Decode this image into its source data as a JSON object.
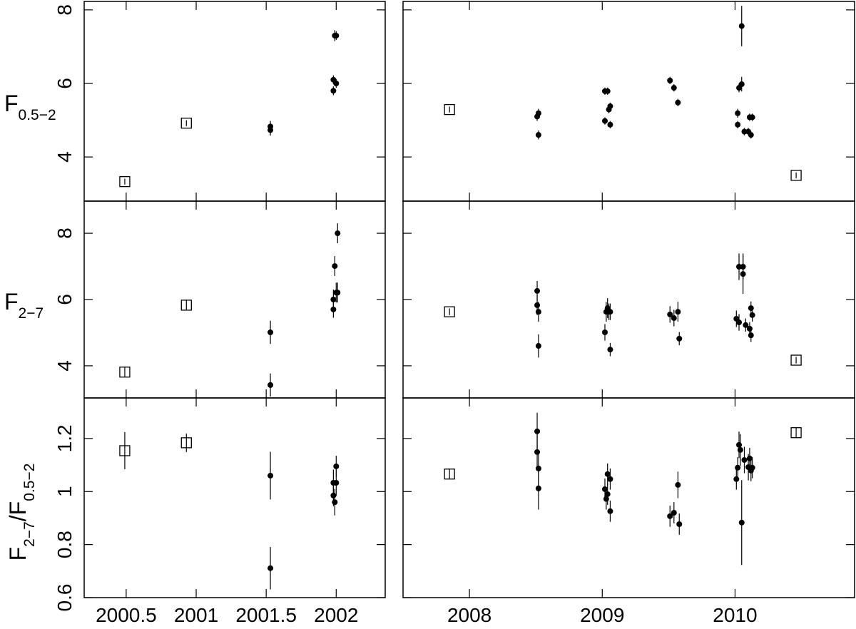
{
  "chart_data": [
    {
      "type": "scatter",
      "ylabel": [
        {
          "text": "F"
        },
        {
          "text": "0.5−2",
          "sub": true
        }
      ],
      "ylabel_rotated": false,
      "xlim": [
        2000.2,
        2002.35
      ],
      "xticks": [
        2000.5,
        2001,
        2001.5,
        2002
      ],
      "show_xtick_labels": false,
      "ylim": [
        2.8,
        8.23
      ],
      "yticks": [
        4,
        6,
        8
      ],
      "show_ytick_labels": true,
      "series": [
        {
          "marker": "square",
          "x": [
            2000.49,
            2000.93
          ],
          "y": [
            3.33,
            4.92
          ],
          "yerr": [
            0.08,
            0.08
          ]
        },
        {
          "marker": "circle",
          "x": [
            2001.53,
            2001.53,
            2001.98,
            2001.98,
            2002.0,
            2001.99,
            2002.0
          ],
          "y": [
            4.83,
            4.73,
            6.1,
            5.8,
            6.0,
            7.3,
            7.3
          ],
          "yerr": [
            0.15,
            0.15,
            0.12,
            0.12,
            0.12,
            0.15,
            0.12
          ]
        }
      ]
    },
    {
      "type": "scatter",
      "xlim": [
        2007.5,
        2010.9
      ],
      "xticks": [
        2008,
        2009,
        2010
      ],
      "show_xtick_labels": false,
      "ylim": [
        2.8,
        8.23
      ],
      "yticks": [
        4,
        6,
        8
      ],
      "show_ytick_labels": false,
      "series": [
        {
          "marker": "square",
          "x": [
            2007.85,
            2010.46
          ],
          "y": [
            5.29,
            3.5
          ],
          "yerr": [
            0.08,
            0.08
          ]
        },
        {
          "marker": "circle",
          "x": [
            2008.51,
            2008.52,
            2008.52,
            2009.02,
            2009.04,
            2009.02,
            2009.05,
            2009.06,
            2009.06,
            2009.51,
            2009.54,
            2009.57,
            2010.02,
            2010.02,
            2010.03,
            2010.05,
            2010.05,
            2010.07,
            2010.1,
            2010.12,
            2010.11,
            2010.13
          ],
          "y": [
            5.1,
            5.19,
            4.6,
            5.79,
            5.79,
            4.98,
            5.29,
            4.88,
            5.38,
            6.08,
            5.88,
            5.48,
            5.19,
            4.88,
            5.88,
            5.98,
            7.56,
            4.69,
            4.69,
            4.6,
            5.08,
            5.08
          ],
          "yerr": [
            0.12,
            0.12,
            0.12,
            0.1,
            0.1,
            0.1,
            0.1,
            0.1,
            0.1,
            0.1,
            0.1,
            0.1,
            0.12,
            0.1,
            0.12,
            0.2,
            0.55,
            0.1,
            0.1,
            0.1,
            0.1,
            0.1
          ]
        }
      ]
    },
    {
      "type": "scatter",
      "ylabel": [
        {
          "text": "F"
        },
        {
          "text": "2−7",
          "sub": true
        }
      ],
      "ylabel_rotated": false,
      "xlim": [
        2000.2,
        2002.35
      ],
      "xticks": [
        2000.5,
        2001,
        2001.5,
        2002
      ],
      "show_xtick_labels": false,
      "ylim": [
        3.03,
        8.97
      ],
      "yticks": [
        4,
        6,
        8
      ],
      "show_ytick_labels": true,
      "series": [
        {
          "marker": "square",
          "x": [
            2000.49,
            2000.93
          ],
          "y": [
            3.81,
            5.83
          ],
          "yerr": [
            0.15,
            0.15
          ]
        },
        {
          "marker": "circle",
          "x": [
            2001.53,
            2001.53,
            2001.98,
            2001.98,
            2002.0,
            2002.01,
            2001.99,
            2002.01
          ],
          "y": [
            5.01,
            3.42,
            5.7,
            6.0,
            6.21,
            6.21,
            7.01,
            8.0
          ],
          "yerr": [
            0.35,
            0.35,
            0.25,
            0.3,
            0.3,
            0.3,
            0.3,
            0.3
          ]
        }
      ]
    },
    {
      "type": "scatter",
      "xlim": [
        2007.5,
        2010.9
      ],
      "xticks": [
        2008,
        2009,
        2010
      ],
      "show_xtick_labels": false,
      "ylim": [
        3.03,
        8.97
      ],
      "yticks": [
        4,
        6,
        8
      ],
      "show_ytick_labels": false,
      "series": [
        {
          "marker": "square",
          "x": [
            2007.85,
            2010.46
          ],
          "y": [
            5.63,
            4.17
          ],
          "yerr": [
            0.1,
            0.1
          ]
        },
        {
          "marker": "circle",
          "x": [
            2008.51,
            2008.51,
            2008.52,
            2008.52,
            2009.02,
            2009.03,
            2009.04,
            2009.05,
            2009.06,
            2009.06,
            2009.51,
            2009.54,
            2009.57,
            2009.58,
            2010.01,
            2010.03,
            2010.03,
            2010.06,
            2010.06,
            2010.08,
            2010.11,
            2010.12,
            2010.12,
            2010.13
          ],
          "y": [
            5.83,
            6.26,
            5.63,
            4.6,
            5.01,
            5.63,
            5.74,
            5.63,
            5.63,
            4.49,
            5.55,
            5.44,
            5.63,
            4.82,
            5.42,
            5.31,
            6.99,
            6.99,
            6.77,
            5.23,
            5.12,
            5.74,
            4.92,
            5.53
          ],
          "yerr": [
            0.3,
            0.3,
            0.3,
            0.35,
            0.25,
            0.3,
            0.3,
            0.25,
            0.25,
            0.2,
            0.25,
            0.25,
            0.3,
            0.2,
            0.25,
            0.25,
            0.4,
            0.4,
            0.6,
            0.2,
            0.2,
            0.2,
            0.2,
            0.2
          ]
        }
      ]
    },
    {
      "type": "scatter",
      "ylabel": [
        {
          "text": "F"
        },
        {
          "text": "2−7",
          "sub": true
        },
        {
          "text": "/F"
        },
        {
          "text": "0.5−2",
          "sub": true
        }
      ],
      "ylabel_rotated": true,
      "xlim": [
        2000.2,
        2002.35
      ],
      "xticks": [
        2000.5,
        2001,
        2001.5,
        2002
      ],
      "show_xtick_labels": true,
      "ylim": [
        0.6,
        1.353
      ],
      "yticks": [
        0.6,
        0.8,
        1,
        1.2
      ],
      "show_ytick_labels": true,
      "series": [
        {
          "marker": "square",
          "x": [
            2000.49,
            2000.93
          ],
          "y": [
            1.154,
            1.184
          ],
          "yerr": [
            0.07,
            0.035
          ]
        },
        {
          "marker": "circle",
          "x": [
            2001.53,
            2001.53,
            2001.98,
            2001.98,
            2001.99,
            2002.0,
            2002.0
          ],
          "y": [
            1.06,
            0.711,
            0.985,
            1.033,
            0.96,
            1.033,
            1.095
          ],
          "yerr": [
            0.09,
            0.08,
            0.04,
            0.05,
            0.05,
            0.05,
            0.04
          ]
        }
      ]
    },
    {
      "type": "scatter",
      "xlim": [
        2007.5,
        2010.9
      ],
      "xticks": [
        2008,
        2009,
        2010
      ],
      "show_xtick_labels": true,
      "ylim": [
        0.6,
        1.353
      ],
      "yticks": [
        0.6,
        0.8,
        1,
        1.2
      ],
      "show_ytick_labels": false,
      "series": [
        {
          "marker": "square",
          "x": [
            2007.85,
            2010.46
          ],
          "y": [
            1.066,
            1.222
          ],
          "yerr": [
            0.02,
            0.02
          ]
        },
        {
          "marker": "circle",
          "x": [
            2008.51,
            2008.51,
            2008.52,
            2008.52,
            2009.02,
            2009.03,
            2009.04,
            2009.04,
            2009.06,
            2009.06,
            2009.51,
            2009.54,
            2009.57,
            2009.58,
            2010.01,
            2010.02,
            2010.03,
            2010.04,
            2010.05,
            2010.07,
            2010.1,
            2010.11,
            2010.12,
            2010.13
          ],
          "y": [
            1.227,
            1.149,
            1.087,
            1.012,
            1.009,
            0.972,
            0.99,
            1.066,
            1.047,
            0.926,
            0.907,
            0.92,
            1.025,
            0.877,
            1.047,
            1.09,
            1.176,
            1.157,
            0.883,
            1.119,
            1.092,
            1.125,
            1.079,
            1.09
          ],
          "yerr": [
            0.07,
            0.07,
            0.07,
            0.08,
            0.04,
            0.04,
            0.04,
            0.04,
            0.04,
            0.04,
            0.04,
            0.04,
            0.05,
            0.04,
            0.04,
            0.04,
            0.05,
            0.06,
            0.16,
            0.05,
            0.05,
            0.04,
            0.04,
            0.04
          ]
        }
      ]
    }
  ]
}
